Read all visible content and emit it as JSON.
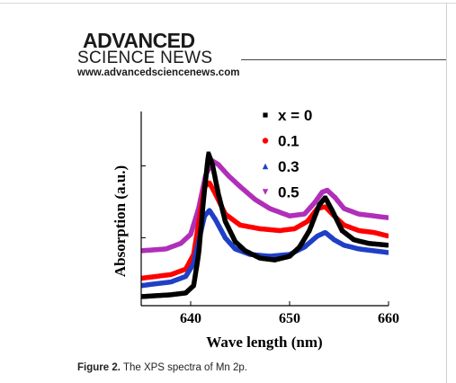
{
  "publisher": {
    "logo_line1": "ADVANCED",
    "logo_line2": "SCIENCE NEWS",
    "url": "www.advancedsciencenews.com"
  },
  "caption": {
    "label": "Figure 2.",
    "text": "The XPS spectra of Mn 2p."
  },
  "chart_data": {
    "type": "line",
    "title": "",
    "xlabel": "Wave length (nm)",
    "ylabel": "Absorption (a.u.)",
    "xlim": [
      635,
      660
    ],
    "ylim": [
      0,
      1
    ],
    "xticks": [
      640,
      650,
      660
    ],
    "grid": false,
    "legend_position": "top-right",
    "series": [
      {
        "name": "x = 0",
        "color": "#000000",
        "marker": "square",
        "points": [
          [
            635,
            0.02
          ],
          [
            638,
            0.03
          ],
          [
            639.5,
            0.04
          ],
          [
            640.3,
            0.08
          ],
          [
            640.8,
            0.25
          ],
          [
            641.3,
            0.55
          ],
          [
            641.8,
            0.8
          ],
          [
            642.2,
            0.74
          ],
          [
            642.8,
            0.58
          ],
          [
            643.5,
            0.43
          ],
          [
            644.5,
            0.32
          ],
          [
            645.5,
            0.27
          ],
          [
            647,
            0.23
          ],
          [
            648.5,
            0.22
          ],
          [
            650,
            0.24
          ],
          [
            651,
            0.29
          ],
          [
            652,
            0.38
          ],
          [
            653,
            0.52
          ],
          [
            653.6,
            0.56
          ],
          [
            654.3,
            0.49
          ],
          [
            655.3,
            0.38
          ],
          [
            656.5,
            0.33
          ],
          [
            658,
            0.31
          ],
          [
            660,
            0.3
          ]
        ]
      },
      {
        "name": "0.1",
        "color": "#ff0000",
        "marker": "circle",
        "points": [
          [
            635,
            0.12
          ],
          [
            638,
            0.14
          ],
          [
            639.5,
            0.17
          ],
          [
            640.3,
            0.25
          ],
          [
            640.8,
            0.42
          ],
          [
            641.4,
            0.62
          ],
          [
            641.9,
            0.64
          ],
          [
            642.5,
            0.58
          ],
          [
            643.5,
            0.47
          ],
          [
            645,
            0.41
          ],
          [
            647,
            0.39
          ],
          [
            649,
            0.38
          ],
          [
            650.5,
            0.39
          ],
          [
            651.8,
            0.43
          ],
          [
            652.8,
            0.5
          ],
          [
            653.6,
            0.51
          ],
          [
            654.5,
            0.46
          ],
          [
            655.5,
            0.41
          ],
          [
            657,
            0.38
          ],
          [
            658.5,
            0.37
          ],
          [
            660,
            0.35
          ]
        ]
      },
      {
        "name": "0.3",
        "color": "#1f3fc6",
        "marker": "triangle-up",
        "points": [
          [
            635,
            0.08
          ],
          [
            638,
            0.1
          ],
          [
            639.5,
            0.13
          ],
          [
            640.3,
            0.2
          ],
          [
            640.8,
            0.32
          ],
          [
            641.4,
            0.46
          ],
          [
            641.9,
            0.49
          ],
          [
            642.5,
            0.44
          ],
          [
            643.5,
            0.34
          ],
          [
            644.5,
            0.28
          ],
          [
            646,
            0.25
          ],
          [
            648,
            0.24
          ],
          [
            650,
            0.25
          ],
          [
            651.5,
            0.29
          ],
          [
            652.8,
            0.35
          ],
          [
            653.6,
            0.37
          ],
          [
            654.5,
            0.33
          ],
          [
            655.5,
            0.3
          ],
          [
            657,
            0.28
          ],
          [
            658.5,
            0.27
          ],
          [
            660,
            0.26
          ]
        ]
      },
      {
        "name": "0.5",
        "color": "#b02fb8",
        "marker": "triangle-down",
        "points": [
          [
            635,
            0.27
          ],
          [
            637.5,
            0.28
          ],
          [
            639,
            0.31
          ],
          [
            640,
            0.36
          ],
          [
            640.8,
            0.5
          ],
          [
            641.5,
            0.68
          ],
          [
            642.2,
            0.76
          ],
          [
            642.8,
            0.74
          ],
          [
            643.8,
            0.68
          ],
          [
            645,
            0.62
          ],
          [
            646.5,
            0.55
          ],
          [
            648,
            0.5
          ],
          [
            650,
            0.46
          ],
          [
            651.5,
            0.47
          ],
          [
            652.5,
            0.53
          ],
          [
            653.3,
            0.59
          ],
          [
            653.8,
            0.6
          ],
          [
            654.6,
            0.56
          ],
          [
            655.5,
            0.5
          ],
          [
            657,
            0.47
          ],
          [
            658.5,
            0.46
          ],
          [
            660,
            0.45
          ]
        ]
      }
    ]
  }
}
